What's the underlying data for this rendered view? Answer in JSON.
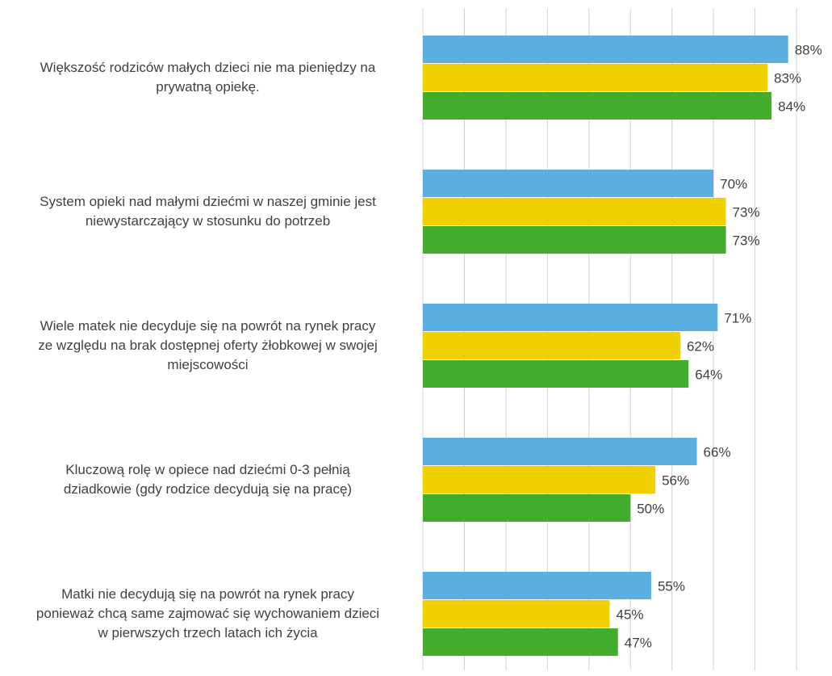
{
  "chart_data": {
    "type": "bar",
    "orientation": "horizontal",
    "categories": [
      "Większość rodziców małych dzieci nie ma pieniędzy na\nprywatną opiekę.",
      "System opieki nad małymi dziećmi w naszej gminie jest\nniewystarczający w stosunku do potrzeb",
      "Wiele matek nie decyduje się na powrót na rynek pracy\nze względu na brak dostępnej oferty żłobkowej w swojej\nmiejscowości",
      "Kluczową rolę w opiece nad dziećmi 0-3 pełnią\ndziadkowie (gdy rodzice decydują się na pracę)",
      "Matki nie decydują się na powrót na rynek pracy\nponieważ chcą same zajmować się wychowaniem dzieci\nw pierwszych trzech latach ich życia"
    ],
    "series": [
      {
        "color": "#5aafe0",
        "values": [
          88,
          70,
          71,
          66,
          55
        ],
        "value_labels": [
          "88%",
          "70%",
          "71%",
          "66%",
          "55%"
        ]
      },
      {
        "color": "#f0d000",
        "values": [
          83,
          73,
          62,
          56,
          45
        ],
        "value_labels": [
          "83%",
          "73%",
          "62%",
          "56%",
          "45%"
        ]
      },
      {
        "color": "#43ac2c",
        "values": [
          84,
          73,
          64,
          50,
          47
        ],
        "value_labels": [
          "84%",
          "73%",
          "64%",
          "50%",
          "47%"
        ]
      }
    ],
    "xlim": [
      0,
      90
    ],
    "xticks": [
      0,
      10,
      20,
      30,
      40,
      50,
      60,
      70,
      80,
      90
    ],
    "grid": true
  }
}
